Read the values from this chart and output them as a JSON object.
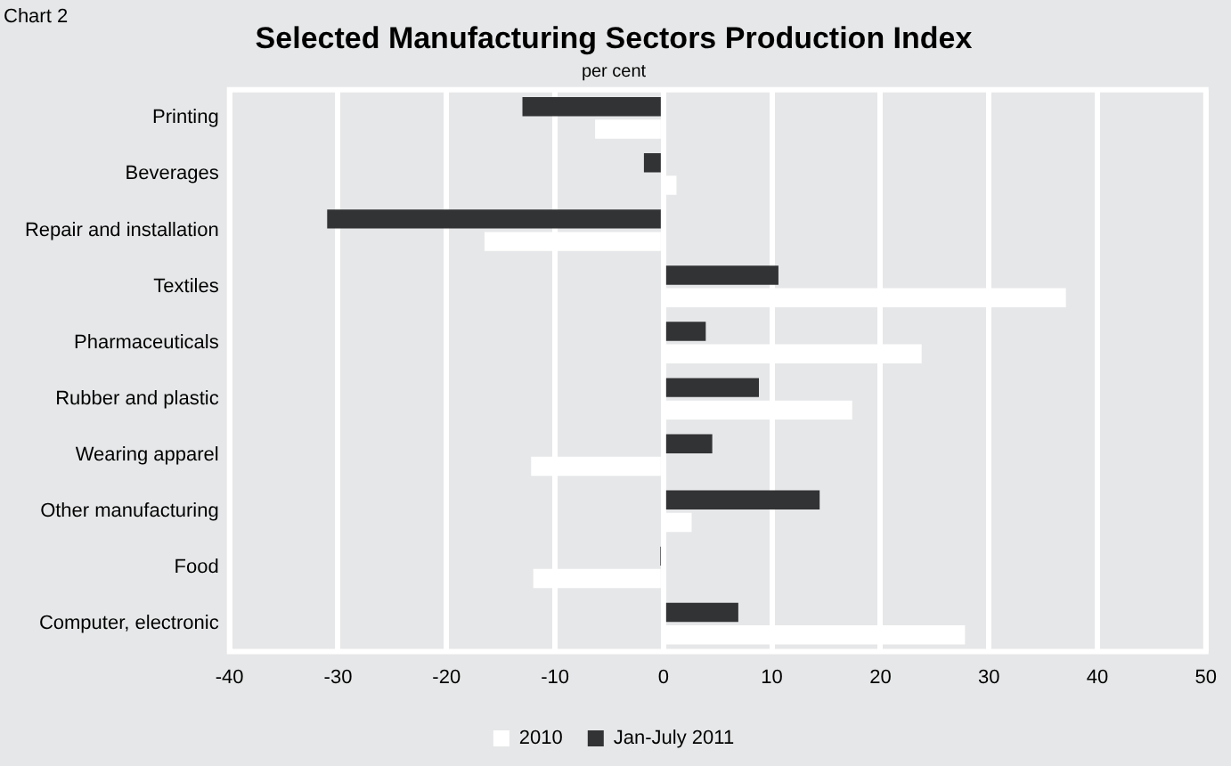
{
  "chart_data": {
    "type": "bar",
    "orientation": "horizontal",
    "title": "Selected Manufacturing Sectors Production Index",
    "subtitle": "per cent",
    "annotations": [
      "Chart 2"
    ],
    "categories": [
      "Printing",
      "Beverages",
      "Repair and installation",
      "Textiles",
      "Pharmaceuticals",
      "Rubber and plastic",
      "Wearing apparel",
      "Other manufacturing",
      "Food",
      "Computer, electronic"
    ],
    "series": [
      {
        "name": "Jan-July 2011",
        "color": "#323335",
        "values": [
          -13.0,
          -1.8,
          -31.0,
          10.6,
          3.9,
          8.8,
          4.5,
          14.4,
          -0.3,
          6.9
        ]
      },
      {
        "name": "2010",
        "color": "#ffffff",
        "values": [
          -6.3,
          1.2,
          -16.5,
          37.1,
          23.8,
          17.4,
          -12.2,
          2.6,
          -12.0,
          27.8
        ]
      }
    ],
    "xlim": [
      -40,
      50
    ],
    "xticks": [
      -40,
      -30,
      -20,
      -10,
      0,
      10,
      20,
      30,
      40,
      50
    ],
    "grid": "x",
    "legend": "bottom"
  }
}
